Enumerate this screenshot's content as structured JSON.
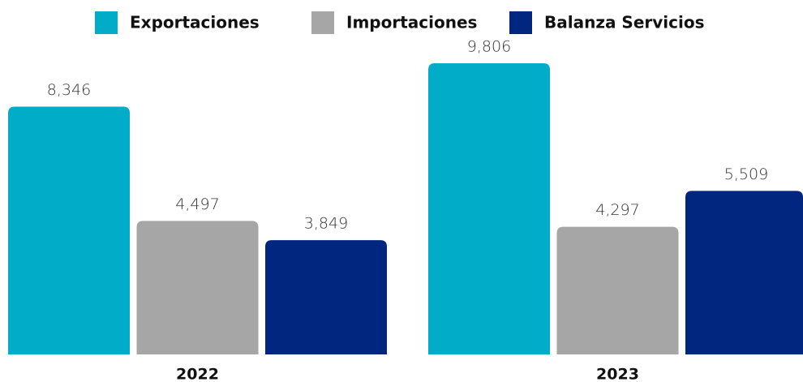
{
  "chart_data": {
    "type": "bar",
    "categories": [
      "2022",
      "2023"
    ],
    "series": [
      {
        "name": "Exportaciones",
        "color": "#00acc8",
        "values": [
          8346,
          9806
        ],
        "value_labels": [
          "8,346",
          "9,806"
        ]
      },
      {
        "name": "Importaciones",
        "color": "#a6a6a6",
        "values": [
          4497,
          4297
        ],
        "value_labels": [
          "4,497",
          "4,297"
        ]
      },
      {
        "name": "Balanza Servicios",
        "color": "#002680",
        "values": [
          3849,
          5509
        ],
        "value_labels": [
          "3,849",
          "5,509"
        ]
      }
    ]
  }
}
